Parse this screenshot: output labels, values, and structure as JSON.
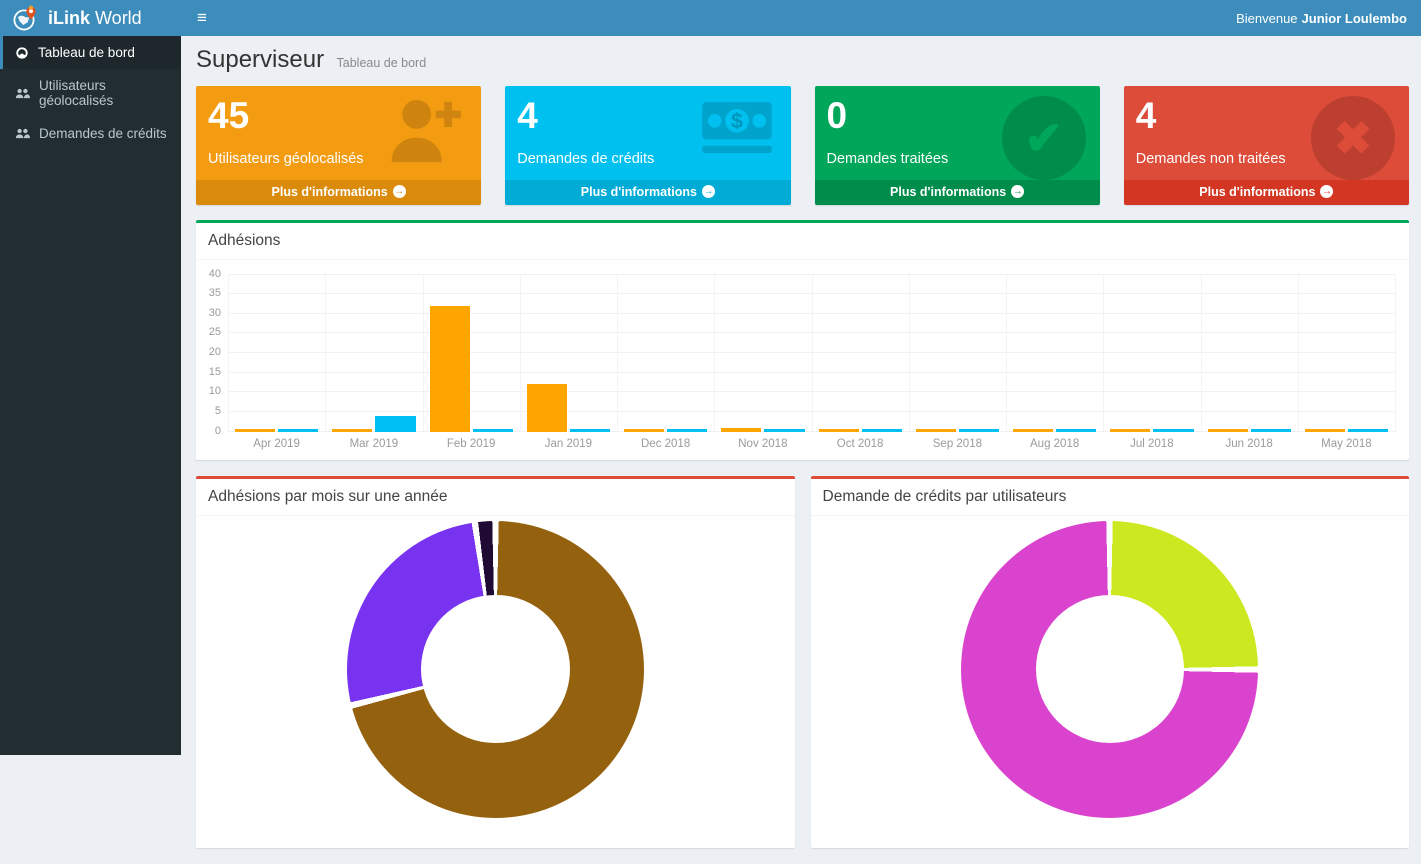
{
  "navbar": {
    "brand_bold": "iLink",
    "brand_rest": " World",
    "hamburger": "≡",
    "welcome_prefix": "Bienvenue",
    "welcome_name": "Junior Loulembo"
  },
  "sidebar": {
    "items": [
      {
        "label": "Tableau de bord",
        "icon": "dashboard-icon",
        "active": true
      },
      {
        "label": "Utilisateurs géolocalisés",
        "icon": "users-icon",
        "active": false
      },
      {
        "label": "Demandes de crédits",
        "icon": "users-icon",
        "active": false
      }
    ]
  },
  "page_header": {
    "title": "Superviseur",
    "subtitle": "Tableau de bord"
  },
  "info_boxes": [
    {
      "value": "45",
      "label": "Utilisateurs géolocalisés",
      "footer_label": "Plus d'informations",
      "icon": "person-add-icon",
      "color": "#f39c12",
      "footer_color": "#db8b0b"
    },
    {
      "value": "4",
      "label": "Demandes de crédits",
      "footer_label": "Plus d'informations",
      "icon": "cash-icon",
      "color": "#00c0ef",
      "footer_color": "#00acd6"
    },
    {
      "value": "0",
      "label": "Demandes traitées",
      "footer_label": "Plus d'informations",
      "icon": "checkmark-circle-icon",
      "color": "#00a65a",
      "footer_color": "#008d4c"
    },
    {
      "value": "4",
      "label": "Demandes non traitées",
      "footer_label": "Plus d'informations",
      "icon": "close-circle-icon",
      "color": "#dd4b39",
      "footer_color": "#d33724"
    }
  ],
  "chart_data": [
    {
      "type": "bar",
      "title": "Adhésions",
      "accent_color": "#00a65a",
      "categories": [
        "Apr 2019",
        "Mar 2019",
        "Feb 2019",
        "Jan 2019",
        "Dec 2018",
        "Nov 2018",
        "Oct 2018",
        "Sep 2018",
        "Aug 2018",
        "Jul 2018",
        "Jun 2018",
        "May 2018"
      ],
      "series": [
        {
          "name": "orange",
          "color": "#ffa500",
          "values": [
            0,
            0,
            32,
            12,
            0,
            1,
            0,
            0,
            0,
            0,
            0,
            0
          ]
        },
        {
          "name": "blue",
          "color": "#00bff3",
          "values": [
            0,
            4,
            0,
            0,
            0,
            0,
            0,
            0,
            0,
            0,
            0,
            0
          ]
        }
      ],
      "ylim": [
        0,
        40
      ],
      "yticks": [
        0,
        5,
        10,
        15,
        20,
        25,
        30,
        35,
        40
      ],
      "grid": true,
      "legend": "none"
    },
    {
      "type": "pie",
      "subtype": "donut",
      "title": "Adhésions par mois sur une année",
      "accent_color": "#dd4b39",
      "start_angle": "top",
      "direction": "clockwise",
      "slices": [
        {
          "value": 32,
          "color": "#94610e"
        },
        {
          "value": 12,
          "color": "#7833f0"
        },
        {
          "value": 1,
          "color": "#1e0a33"
        }
      ]
    },
    {
      "type": "pie",
      "subtype": "donut",
      "title": "Demande de crédits par utilisateurs",
      "accent_color": "#dd4b39",
      "start_angle": "top",
      "direction": "clockwise",
      "slices": [
        {
          "value": 1,
          "color": "#cbe821"
        },
        {
          "value": 3,
          "color": "#d943ce"
        }
      ]
    }
  ]
}
